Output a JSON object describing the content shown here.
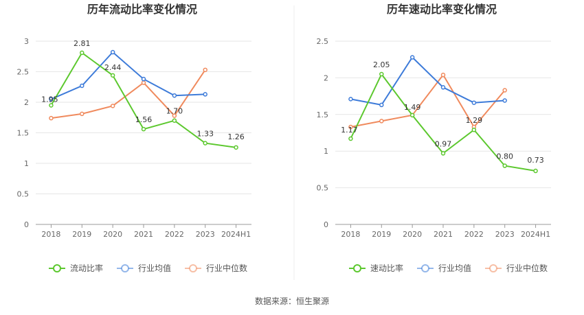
{
  "source": "数据来源：恒生聚源",
  "chart_data": [
    {
      "type": "line",
      "title": "历年流动比率变化情况",
      "categories": [
        "2018",
        "2019",
        "2020",
        "2021",
        "2022",
        "2023",
        "2024H1"
      ],
      "ylim": [
        0,
        3
      ],
      "yticks": [
        "0",
        "0.5",
        "1",
        "1.5",
        "2",
        "2.5",
        "3"
      ],
      "ytick_values": [
        0,
        0.5,
        1,
        1.5,
        2,
        2.5,
        3
      ],
      "series": [
        {
          "name": "流动比率",
          "color": "#5cc82e",
          "labels": [
            "1.95",
            "2.81",
            "2.44",
            "1.56",
            "1.70",
            "1.33",
            "1.26"
          ],
          "values": [
            1.95,
            2.81,
            2.44,
            1.56,
            1.7,
            1.33,
            1.26
          ]
        },
        {
          "name": "行业均值",
          "color": "#3d7bd9",
          "values": [
            2.05,
            2.27,
            2.82,
            2.38,
            2.11,
            2.13,
            null
          ]
        },
        {
          "name": "行业中位数",
          "color": "#f08a5d",
          "values": [
            1.74,
            1.81,
            1.94,
            2.32,
            1.78,
            2.53,
            null
          ]
        }
      ]
    },
    {
      "type": "line",
      "title": "历年速动比率变化情况",
      "categories": [
        "2018",
        "2019",
        "2020",
        "2021",
        "2022",
        "2023",
        "2024H1"
      ],
      "ylim": [
        0,
        2.5
      ],
      "yticks": [
        "0",
        "0.5",
        "1",
        "1.5",
        "2",
        "2.5"
      ],
      "ytick_values": [
        0,
        0.5,
        1,
        1.5,
        2,
        2.5
      ],
      "series": [
        {
          "name": "速动比率",
          "color": "#5cc82e",
          "labels": [
            "1.17",
            "2.05",
            "1.49",
            "0.97",
            "1.29",
            "0.80",
            "0.73"
          ],
          "values": [
            1.17,
            2.05,
            1.49,
            0.97,
            1.29,
            0.8,
            0.73
          ]
        },
        {
          "name": "行业均值",
          "color": "#3d7bd9",
          "values": [
            1.71,
            1.63,
            2.28,
            1.87,
            1.66,
            1.69,
            null
          ]
        },
        {
          "name": "行业中位数",
          "color": "#f08a5d",
          "values": [
            1.33,
            1.41,
            1.49,
            2.04,
            1.33,
            1.83,
            null
          ]
        }
      ]
    }
  ]
}
